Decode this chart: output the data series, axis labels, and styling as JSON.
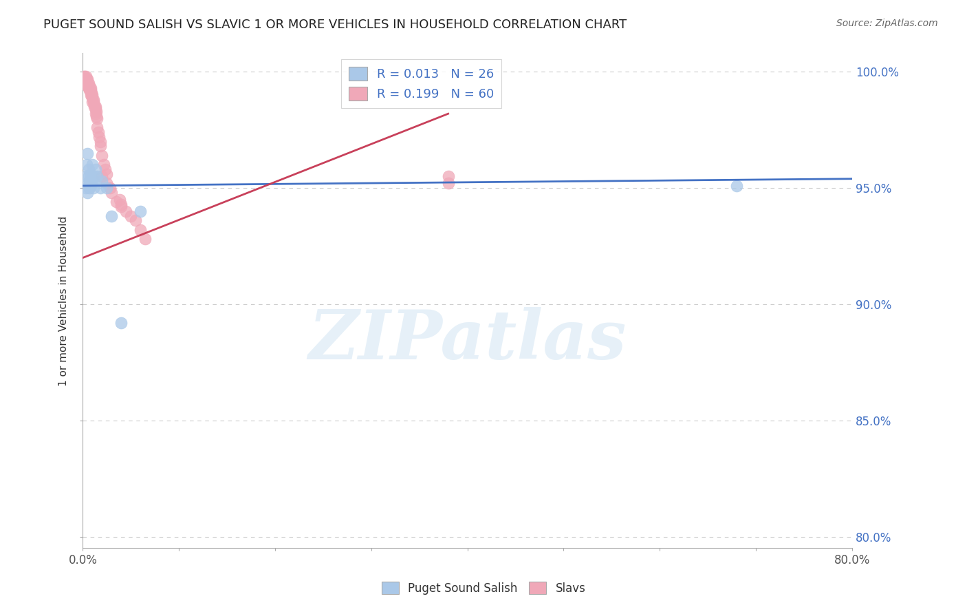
{
  "title": "PUGET SOUND SALISH VS SLAVIC 1 OR MORE VEHICLES IN HOUSEHOLD CORRELATION CHART",
  "source": "Source: ZipAtlas.com",
  "ylabel": "1 or more Vehicles in Household",
  "xlim": [
    0.0,
    0.8
  ],
  "ylim": [
    0.795,
    1.008
  ],
  "xticks": [
    0.0,
    0.1,
    0.2,
    0.3,
    0.4,
    0.5,
    0.6,
    0.7,
    0.8
  ],
  "ytick_positions": [
    0.8,
    0.85,
    0.9,
    0.95,
    1.0
  ],
  "ytick_labels": [
    "80.0%",
    "85.0%",
    "90.0%",
    "95.0%",
    "100.0%"
  ],
  "grid_color": "#cccccc",
  "background_color": "#ffffff",
  "blue_color": "#aac8e8",
  "pink_color": "#f0a8b8",
  "blue_line_color": "#4472c4",
  "pink_line_color": "#c8405a",
  "legend_blue_R": "R = 0.013",
  "legend_blue_N": "N = 26",
  "legend_pink_R": "R = 0.199",
  "legend_pink_N": "N = 60",
  "watermark_text": "ZIPatlas",
  "blue_scatter_x": [
    0.003,
    0.003,
    0.004,
    0.005,
    0.005,
    0.005,
    0.006,
    0.006,
    0.007,
    0.007,
    0.008,
    0.008,
    0.009,
    0.01,
    0.01,
    0.011,
    0.012,
    0.013,
    0.015,
    0.018,
    0.02,
    0.025,
    0.03,
    0.04,
    0.06,
    0.68
  ],
  "blue_scatter_y": [
    0.95,
    0.955,
    0.96,
    0.948,
    0.952,
    0.965,
    0.955,
    0.958,
    0.95,
    0.953,
    0.951,
    0.956,
    0.952,
    0.954,
    0.96,
    0.95,
    0.955,
    0.958,
    0.955,
    0.95,
    0.953,
    0.95,
    0.938,
    0.892,
    0.94,
    0.951
  ],
  "pink_scatter_x": [
    0.001,
    0.002,
    0.002,
    0.003,
    0.003,
    0.003,
    0.004,
    0.004,
    0.004,
    0.005,
    0.005,
    0.005,
    0.006,
    0.006,
    0.006,
    0.007,
    0.007,
    0.007,
    0.008,
    0.008,
    0.008,
    0.009,
    0.009,
    0.01,
    0.01,
    0.01,
    0.011,
    0.011,
    0.012,
    0.012,
    0.013,
    0.013,
    0.013,
    0.014,
    0.014,
    0.015,
    0.015,
    0.016,
    0.017,
    0.018,
    0.018,
    0.02,
    0.02,
    0.022,
    0.023,
    0.025,
    0.025,
    0.028,
    0.03,
    0.035,
    0.04,
    0.045,
    0.05,
    0.055,
    0.06,
    0.065,
    0.038,
    0.04,
    0.38,
    0.38
  ],
  "pink_scatter_y": [
    0.998,
    0.998,
    0.997,
    0.998,
    0.997,
    0.996,
    0.997,
    0.996,
    0.995,
    0.997,
    0.996,
    0.994,
    0.995,
    0.994,
    0.993,
    0.994,
    0.993,
    0.992,
    0.993,
    0.992,
    0.99,
    0.991,
    0.99,
    0.99,
    0.989,
    0.987,
    0.988,
    0.987,
    0.986,
    0.985,
    0.985,
    0.984,
    0.982,
    0.983,
    0.981,
    0.98,
    0.976,
    0.974,
    0.972,
    0.97,
    0.968,
    0.964,
    0.955,
    0.96,
    0.958,
    0.956,
    0.952,
    0.95,
    0.948,
    0.944,
    0.942,
    0.94,
    0.938,
    0.936,
    0.932,
    0.928,
    0.945,
    0.943,
    0.955,
    0.952
  ],
  "blue_line_x": [
    0.0,
    0.8
  ],
  "blue_line_y": [
    0.951,
    0.954
  ],
  "pink_line_x": [
    0.0,
    0.38
  ],
  "pink_line_y": [
    0.92,
    0.982
  ]
}
